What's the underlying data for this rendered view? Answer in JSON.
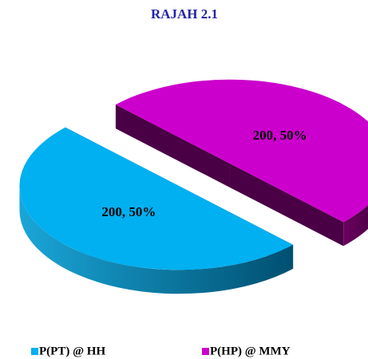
{
  "chart_data": {
    "type": "pie",
    "title": "RAJAH 2.1",
    "categories": [
      "P(PT) @ HH",
      "P(HP) @ MMY"
    ],
    "values": [
      200,
      200
    ],
    "value_labels": [
      "200, 50%",
      "200, 50%"
    ],
    "colors": [
      "#00b0f0",
      "#cc00cc"
    ],
    "legend": "bottom",
    "exploded": true,
    "3d": true
  }
}
